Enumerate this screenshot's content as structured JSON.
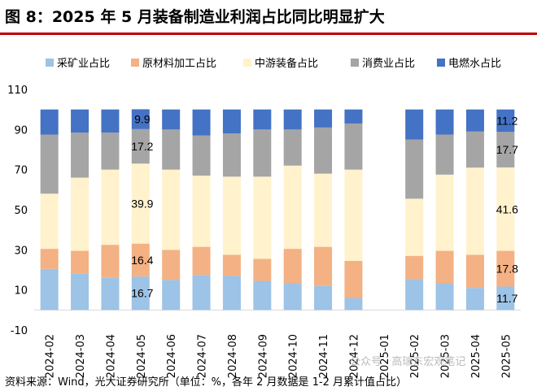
{
  "title": "图 8：2025 年 5 月装备制造业利润占比同比明显扩大",
  "source": "资料来源：Wind，光大证券研究所（单位：%，各年 2 月数据是 1-2 月累计值占比）",
  "watermark": "公众号 · 高瑞东宏观笔记",
  "chart_data": {
    "type": "bar",
    "stacked": true,
    "title": "图 8：2025 年 5 月装备制造业利润占比同比明显扩大",
    "ylim": [
      -10,
      110
    ],
    "yticks": [
      -10,
      10,
      30,
      50,
      70,
      90,
      110
    ],
    "grid": false,
    "legend_position": "top",
    "categories": [
      "2024-02",
      "2024-03",
      "2024-04",
      "2024-05",
      "2024-06",
      "2024-07",
      "2024-08",
      "2024-09",
      "2024-10",
      "2024-11",
      "2024-12",
      "2025-01",
      "2025-02",
      "2025-03",
      "2025-04",
      "2025-05"
    ],
    "series": [
      {
        "name": "采矿业占比",
        "color": "#9DC3E6",
        "values": [
          20.5,
          18.0,
          16.0,
          16.7,
          15.0,
          17.5,
          17.0,
          14.5,
          13.5,
          12.0,
          6.0,
          null,
          15.5,
          13.5,
          11.0,
          11.7
        ]
      },
      {
        "name": "原材料加工占比",
        "color": "#F4B183",
        "values": [
          10.0,
          11.5,
          16.5,
          16.4,
          15.0,
          14.0,
          10.5,
          11.0,
          17.0,
          19.5,
          18.5,
          null,
          11.5,
          16.0,
          16.5,
          17.8
        ]
      },
      {
        "name": "中游装备占比",
        "color": "#FFF2CC",
        "values": [
          27.5,
          36.5,
          37.5,
          39.9,
          40.0,
          35.5,
          39.0,
          41.0,
          41.5,
          36.5,
          45.5,
          null,
          28.5,
          38.0,
          43.5,
          41.6
        ]
      },
      {
        "name": "消费业占比",
        "color": "#A5A5A5",
        "values": [
          29.5,
          22.5,
          18.5,
          17.2,
          20.0,
          20.0,
          21.5,
          23.5,
          18.0,
          23.0,
          23.0,
          null,
          29.5,
          20.0,
          18.0,
          17.7
        ]
      },
      {
        "name": "电燃水占比",
        "color": "#4472C4",
        "values": [
          12.5,
          11.5,
          11.5,
          9.9,
          10.0,
          13.0,
          12.0,
          10.0,
          10.0,
          9.0,
          7.0,
          null,
          15.0,
          12.5,
          11.0,
          11.2
        ]
      }
    ],
    "data_labels": [
      {
        "category": "2024-05",
        "series": "采矿业占比",
        "text": "16.7"
      },
      {
        "category": "2024-05",
        "series": "原材料加工占比",
        "text": "16.4"
      },
      {
        "category": "2024-05",
        "series": "中游装备占比",
        "text": "39.9"
      },
      {
        "category": "2024-05",
        "series": "消费业占比",
        "text": "17.2"
      },
      {
        "category": "2024-05",
        "series": "电燃水占比",
        "text": "9.9"
      },
      {
        "category": "2025-05",
        "series": "采矿业占比",
        "text": "11.7"
      },
      {
        "category": "2025-05",
        "series": "原材料加工占比",
        "text": "17.8"
      },
      {
        "category": "2025-05",
        "series": "中游装备占比",
        "text": "41.6"
      },
      {
        "category": "2025-05",
        "series": "消费业占比",
        "text": "17.7"
      },
      {
        "category": "2025-05",
        "series": "电燃水占比",
        "text": "11.2"
      }
    ]
  }
}
